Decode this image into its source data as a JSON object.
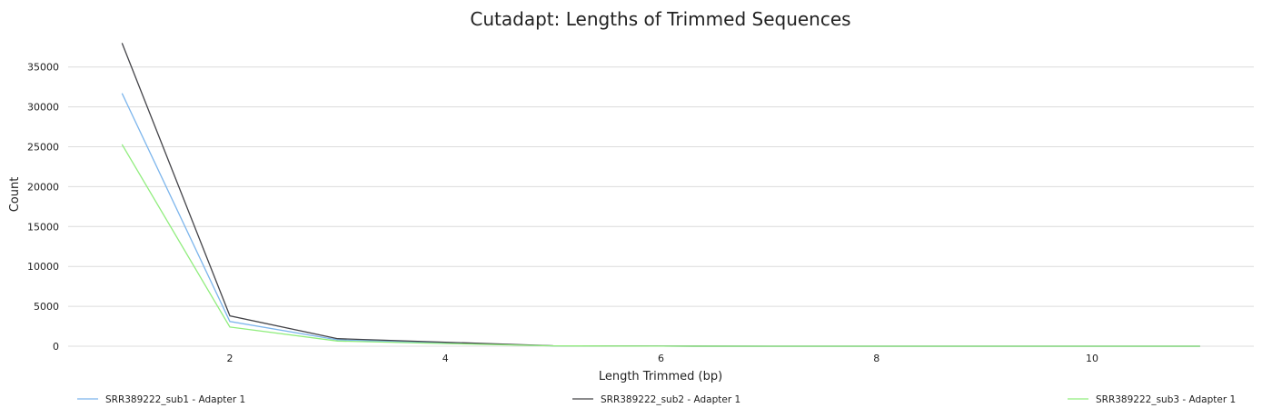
{
  "chart_data": {
    "type": "line",
    "title": "Cutadapt: Lengths of Trimmed Sequences",
    "xlabel": "Length Trimmed (bp)",
    "ylabel": "Count",
    "xlim": [
      0.5,
      11.5
    ],
    "ylim": [
      0,
      38500
    ],
    "xticks": [
      2,
      4,
      6,
      8,
      10
    ],
    "yticks": [
      0,
      5000,
      10000,
      15000,
      20000,
      25000,
      30000,
      35000
    ],
    "grid": "horizontal",
    "legend_position": "bottom",
    "series": [
      {
        "name": "SRR389222_sub1 - Adapter 1",
        "color": "#7cb5ec",
        "x": [
          1,
          2,
          3,
          4,
          5,
          6,
          7,
          8,
          9,
          10,
          11
        ],
        "y": [
          31700,
          3100,
          800,
          400,
          50,
          10,
          5,
          0,
          0,
          0,
          0
        ]
      },
      {
        "name": "SRR389222_sub2 - Adapter 1",
        "color": "#434348",
        "x": [
          1,
          2,
          3,
          4,
          5,
          6,
          7,
          8,
          9,
          10,
          11
        ],
        "y": [
          38000,
          3800,
          950,
          500,
          60,
          10,
          5,
          0,
          0,
          0,
          0
        ]
      },
      {
        "name": "SRR389222_sub3 - Adapter 1",
        "color": "#90ed7d",
        "x": [
          1,
          2,
          3,
          4,
          5,
          6,
          7,
          8,
          9,
          10,
          11
        ],
        "y": [
          25300,
          2400,
          650,
          330,
          40,
          10,
          5,
          0,
          0,
          0,
          0
        ]
      }
    ]
  }
}
